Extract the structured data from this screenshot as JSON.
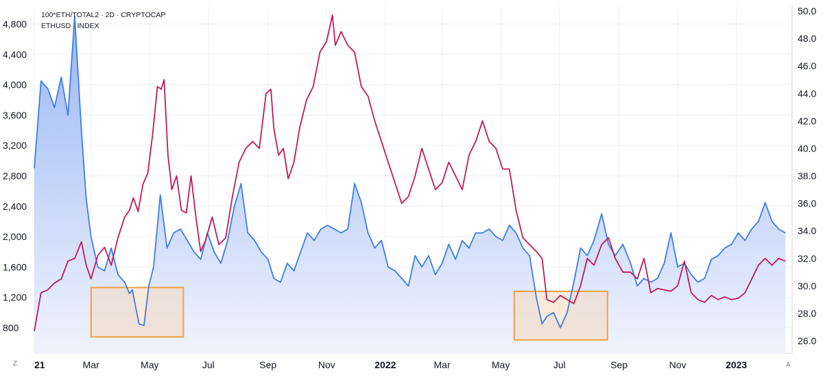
{
  "legend": {
    "line1": "100*ETH/TOTAL2 · 2D · CRYPTOCAP",
    "line2": "ETHUSD · INDEX"
  },
  "corner_left": "Z",
  "corner_right": "A",
  "chart_data": {
    "type": "line",
    "x_tick_labels": [
      "21",
      "Mar",
      "May",
      "Jul",
      "Sep",
      "Nov",
      "2022",
      "Mar",
      "May",
      "Jul",
      "Sep",
      "Nov",
      "2023"
    ],
    "left_axis": {
      "ticks": [
        "4,800",
        "4,400",
        "4,000",
        "3,600",
        "3,200",
        "2,800",
        "2,400",
        "2,000",
        "1,600",
        "1,200",
        "800"
      ],
      "range": [
        580,
        4980
      ]
    },
    "right_axis": {
      "ticks": [
        "50.0",
        "48.0",
        "46.0",
        "44.0",
        "42.0",
        "40.0",
        "38.0",
        "36.0",
        "34.0",
        "32.0",
        "30.0",
        "28.0",
        "26.0"
      ],
      "range": [
        25.6,
        50.4
      ]
    },
    "grid": true,
    "series": [
      {
        "name": "ETHUSD · INDEX",
        "axis": "left",
        "color": "#3a7ee6",
        "fill": "area",
        "x": [
          "2021-01-01",
          "2021-01-08",
          "2021-01-15",
          "2021-01-22",
          "2021-01-29",
          "2021-02-05",
          "2021-02-12",
          "2021-02-19",
          "2021-02-24",
          "2021-03-01",
          "2021-03-08",
          "2021-03-15",
          "2021-03-22",
          "2021-03-29",
          "2021-04-05",
          "2021-04-10",
          "2021-04-13",
          "2021-04-16",
          "2021-04-20",
          "2021-04-25",
          "2021-04-30",
          "2021-05-05",
          "2021-05-12",
          "2021-05-19",
          "2021-05-26",
          "2021-06-02",
          "2021-06-09",
          "2021-06-16",
          "2021-06-23",
          "2021-06-30",
          "2021-07-07",
          "2021-07-14",
          "2021-07-21",
          "2021-07-28",
          "2021-08-04",
          "2021-08-11",
          "2021-08-18",
          "2021-08-25",
          "2021-09-01",
          "2021-09-07",
          "2021-09-14",
          "2021-09-21",
          "2021-09-28",
          "2021-10-05",
          "2021-10-12",
          "2021-10-19",
          "2021-10-26",
          "2021-11-02",
          "2021-11-09",
          "2021-11-16",
          "2021-11-23",
          "2021-11-30",
          "2021-12-07",
          "2021-12-14",
          "2021-12-21",
          "2021-12-28",
          "2022-01-04",
          "2022-01-11",
          "2022-01-18",
          "2022-01-25",
          "2022-02-01",
          "2022-02-08",
          "2022-02-15",
          "2022-02-22",
          "2022-03-01",
          "2022-03-08",
          "2022-03-15",
          "2022-03-22",
          "2022-03-29",
          "2022-04-05",
          "2022-04-12",
          "2022-04-19",
          "2022-04-26",
          "2022-05-03",
          "2022-05-10",
          "2022-05-17",
          "2022-05-24",
          "2022-05-31",
          "2022-06-07",
          "2022-06-13",
          "2022-06-18",
          "2022-06-25",
          "2022-07-02",
          "2022-07-09",
          "2022-07-16",
          "2022-07-23",
          "2022-07-30",
          "2022-08-06",
          "2022-08-14",
          "2022-08-21",
          "2022-08-28",
          "2022-09-05",
          "2022-09-13",
          "2022-09-20",
          "2022-09-27",
          "2022-10-04",
          "2022-10-11",
          "2022-10-18",
          "2022-10-25",
          "2022-11-01",
          "2022-11-08",
          "2022-11-15",
          "2022-11-22",
          "2022-11-29",
          "2022-12-06",
          "2022-12-13",
          "2022-12-20",
          "2022-12-27",
          "2023-01-03",
          "2023-01-10",
          "2023-01-17",
          "2023-01-24",
          "2023-01-31",
          "2023-02-07",
          "2023-02-14",
          "2023-02-21"
        ],
        "values": [
          2900,
          4050,
          3950,
          3700,
          4100,
          3600,
          4900,
          3400,
          2500,
          2000,
          1600,
          1550,
          1850,
          1500,
          1400,
          1250,
          1300,
          1100,
          850,
          830,
          1350,
          1600,
          2550,
          1850,
          2050,
          2100,
          1950,
          1800,
          1700,
          2050,
          1800,
          1650,
          1950,
          2400,
          2700,
          2050,
          1950,
          1800,
          1700,
          1450,
          1400,
          1650,
          1550,
          1800,
          2050,
          1950,
          2100,
          2150,
          2100,
          2050,
          2100,
          2700,
          2450,
          2050,
          1850,
          1950,
          1600,
          1550,
          1450,
          1350,
          1750,
          1600,
          1750,
          1500,
          1650,
          1900,
          1700,
          1950,
          1850,
          2050,
          2050,
          2100,
          2000,
          1950,
          2150,
          2050,
          1850,
          1750,
          1200,
          850,
          950,
          1000,
          800,
          1000,
          1400,
          1850,
          1750,
          1950,
          2300,
          1900,
          1750,
          1900,
          1650,
          1350,
          1450,
          1400,
          1450,
          1650,
          2050,
          1600,
          1650,
          1500,
          1400,
          1450,
          1700,
          1750,
          1850,
          1900,
          2050,
          1950,
          2100,
          2200,
          2450,
          2200,
          2100,
          2050
        ]
      },
      {
        "name": "100*ETH/TOTAL2 · 2D · CRYPTOCAP",
        "axis": "right",
        "color": "#c2185b",
        "x": [
          "2021-01-01",
          "2021-01-08",
          "2021-01-15",
          "2021-01-22",
          "2021-01-29",
          "2021-02-05",
          "2021-02-12",
          "2021-02-19",
          "2021-02-24",
          "2021-03-01",
          "2021-03-08",
          "2021-03-15",
          "2021-03-22",
          "2021-03-29",
          "2021-04-05",
          "2021-04-10",
          "2021-04-14",
          "2021-04-19",
          "2021-04-24",
          "2021-04-29",
          "2021-05-04",
          "2021-05-09",
          "2021-05-13",
          "2021-05-16",
          "2021-05-20",
          "2021-05-24",
          "2021-05-29",
          "2021-06-03",
          "2021-06-08",
          "2021-06-13",
          "2021-06-18",
          "2021-06-23",
          "2021-06-28",
          "2021-07-05",
          "2021-07-12",
          "2021-07-19",
          "2021-07-26",
          "2021-08-02",
          "2021-08-09",
          "2021-08-16",
          "2021-08-23",
          "2021-08-30",
          "2021-09-04",
          "2021-09-07",
          "2021-09-12",
          "2021-09-17",
          "2021-09-22",
          "2021-09-28",
          "2021-10-04",
          "2021-10-11",
          "2021-10-18",
          "2021-10-25",
          "2021-11-01",
          "2021-11-07",
          "2021-11-10",
          "2021-11-16",
          "2021-11-23",
          "2021-11-30",
          "2021-12-07",
          "2021-12-14",
          "2021-12-21",
          "2021-12-28",
          "2022-01-04",
          "2022-01-11",
          "2022-01-18",
          "2022-01-25",
          "2022-02-01",
          "2022-02-08",
          "2022-02-15",
          "2022-02-22",
          "2022-03-01",
          "2022-03-08",
          "2022-03-15",
          "2022-03-22",
          "2022-03-29",
          "2022-04-05",
          "2022-04-12",
          "2022-04-19",
          "2022-04-26",
          "2022-05-03",
          "2022-05-10",
          "2022-05-17",
          "2022-05-24",
          "2022-05-31",
          "2022-06-07",
          "2022-06-13",
          "2022-06-18",
          "2022-06-25",
          "2022-07-02",
          "2022-07-09",
          "2022-07-16",
          "2022-07-23",
          "2022-07-30",
          "2022-08-06",
          "2022-08-14",
          "2022-08-21",
          "2022-08-28",
          "2022-09-05",
          "2022-09-13",
          "2022-09-20",
          "2022-09-27",
          "2022-10-04",
          "2022-10-11",
          "2022-10-18",
          "2022-10-25",
          "2022-11-01",
          "2022-11-08",
          "2022-11-15",
          "2022-11-22",
          "2022-11-29",
          "2022-12-06",
          "2022-12-13",
          "2022-12-20",
          "2022-12-27",
          "2023-01-03",
          "2023-01-10",
          "2023-01-17",
          "2023-01-24",
          "2023-01-31",
          "2023-02-07",
          "2023-02-14",
          "2023-02-21"
        ],
        "values": [
          26.7,
          29.5,
          29.7,
          30.2,
          30.5,
          31.8,
          32.0,
          33.2,
          31.5,
          30.5,
          32.2,
          32.8,
          31.5,
          33.5,
          35.0,
          35.5,
          36.4,
          35.4,
          37.4,
          38.2,
          41.0,
          44.5,
          44.3,
          45.0,
          39.5,
          37.0,
          38.0,
          35.5,
          35.3,
          38.0,
          35.0,
          32.5,
          33.3,
          35.0,
          33.0,
          33.5,
          36.5,
          39.0,
          40.0,
          40.5,
          40.0,
          44.0,
          44.3,
          41.5,
          39.5,
          40.0,
          37.8,
          39.0,
          41.5,
          43.5,
          44.5,
          47.0,
          47.8,
          49.7,
          47.5,
          48.5,
          47.5,
          47.0,
          44.5,
          43.8,
          42.0,
          40.5,
          39.0,
          37.5,
          36.0,
          36.5,
          38.0,
          40.0,
          38.5,
          37.0,
          37.5,
          39.0,
          38.0,
          37.0,
          39.5,
          40.5,
          42.0,
          40.5,
          40.0,
          38.5,
          38.5,
          35.5,
          33.5,
          33.0,
          32.5,
          32.0,
          29.0,
          28.8,
          29.3,
          29.0,
          28.7,
          30.0,
          32.0,
          31.5,
          33.0,
          33.5,
          32.0,
          31.0,
          31.0,
          30.5,
          32.0,
          29.5,
          29.8,
          29.7,
          29.6,
          30.0,
          31.8,
          29.5,
          29.0,
          28.8,
          29.3,
          29.0,
          29.2,
          29.0,
          29.1,
          29.5,
          30.5,
          31.5,
          32.0,
          31.5,
          32.0,
          31.8
        ]
      }
    ],
    "highlight_boxes": [
      {
        "x_from": "2021-03-01",
        "x_to": "2021-06-05",
        "y_top": 1330,
        "y_bottom": 680,
        "axis": "left"
      },
      {
        "x_from": "2022-05-15",
        "x_to": "2022-08-20",
        "y_top": 1280,
        "y_bottom": 640,
        "axis": "left"
      }
    ]
  },
  "colors": {
    "area_top": "#9ab7f5",
    "area_bottom": "#f0f3fd",
    "box_stroke": "#f0a040",
    "box_fill": "#f5d9bc",
    "grid": "#eef0f3",
    "tick_text": "#131722"
  }
}
